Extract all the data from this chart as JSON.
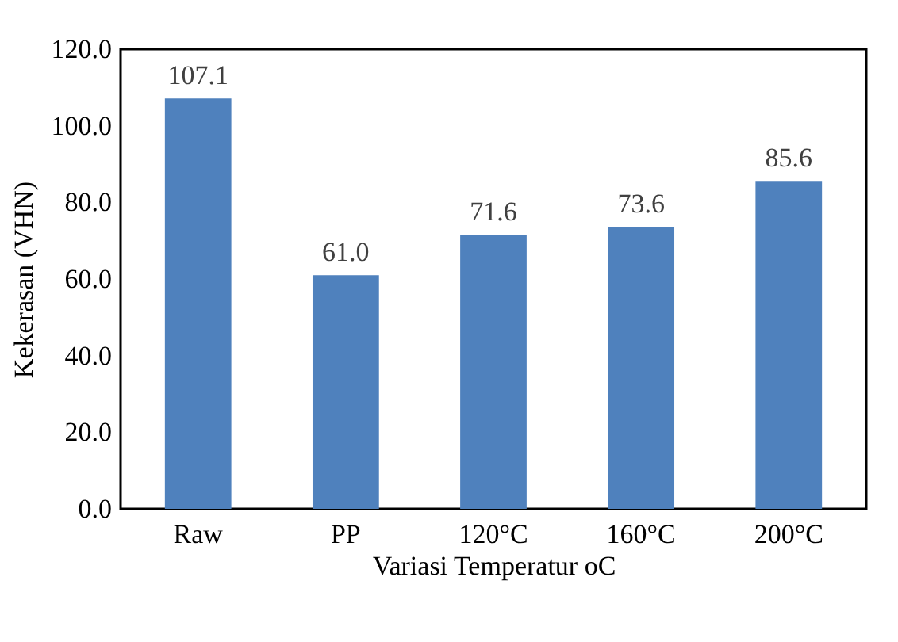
{
  "chart_data": {
    "type": "bar",
    "categories": [
      "Raw",
      "PP",
      "120°C",
      "160°C",
      "200°C"
    ],
    "values": [
      107.1,
      61.0,
      71.6,
      73.6,
      85.6
    ],
    "value_labels": [
      "107.1",
      "61.0",
      "71.6",
      "73.6",
      "85.6"
    ],
    "color": "#4f81bd",
    "xlabel": "Variasi Temperatur oC",
    "ylabel": "Kekerasan (VHN)",
    "ylim": [
      0,
      120
    ],
    "yticks": [
      {
        "value": 0,
        "label": "0.0"
      },
      {
        "value": 20,
        "label": "20.0"
      },
      {
        "value": 40,
        "label": "40.0"
      },
      {
        "value": 60,
        "label": "60.0"
      },
      {
        "value": 80,
        "label": "80.0"
      },
      {
        "value": 100,
        "label": "100.0"
      },
      {
        "value": 120,
        "label": "120.0"
      }
    ],
    "grid": false
  }
}
